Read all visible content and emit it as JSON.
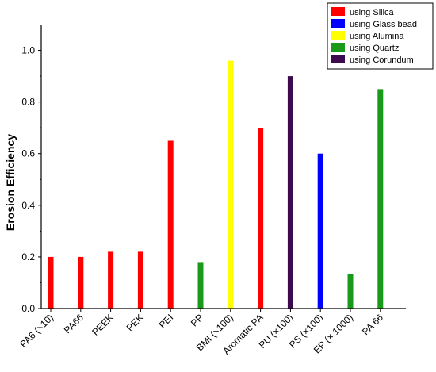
{
  "chart_data": {
    "type": "bar",
    "ylabel": "Erosion Efficiency",
    "xlabel": "",
    "title": "",
    "ylim": [
      0,
      1.1
    ],
    "yticks": [
      0.0,
      0.2,
      0.4,
      0.6,
      0.8,
      1.0
    ],
    "ytick_labels": [
      "0.0",
      "0.2",
      "0.4",
      "0.6",
      "0.8",
      "1.0"
    ],
    "grid": false,
    "legend_position": "top-right",
    "categories": [
      "PA6 (×10)",
      "PA66",
      "PEEK",
      "PEK",
      "PEI",
      "PP",
      "BMI (×100)",
      "Aromatic PA",
      "PU (×100)",
      "PS (×100)",
      "EP (× 1000)",
      "PA 66"
    ],
    "series": [
      {
        "name": "using Silica",
        "color": "#ff0000",
        "values": [
          0.2,
          0.2,
          0.22,
          0.22,
          0.65,
          null,
          null,
          0.7,
          null,
          null,
          null,
          null
        ]
      },
      {
        "name": "using Glass bead",
        "color": "#0000ff",
        "values": [
          null,
          null,
          null,
          null,
          null,
          null,
          null,
          null,
          null,
          0.6,
          null,
          null
        ]
      },
      {
        "name": "using Alumina",
        "color": "#ffff00",
        "values": [
          null,
          null,
          null,
          null,
          null,
          null,
          0.96,
          null,
          null,
          null,
          null,
          null
        ]
      },
      {
        "name": "using Quartz",
        "color": "#1a9a1a",
        "values": [
          null,
          null,
          null,
          null,
          null,
          0.18,
          null,
          null,
          null,
          null,
          0.135,
          0.85
        ]
      },
      {
        "name": "using Corundum",
        "color": "#3d0a4f",
        "values": [
          null,
          null,
          null,
          null,
          null,
          null,
          null,
          null,
          0.9,
          null,
          null,
          null
        ]
      }
    ]
  }
}
